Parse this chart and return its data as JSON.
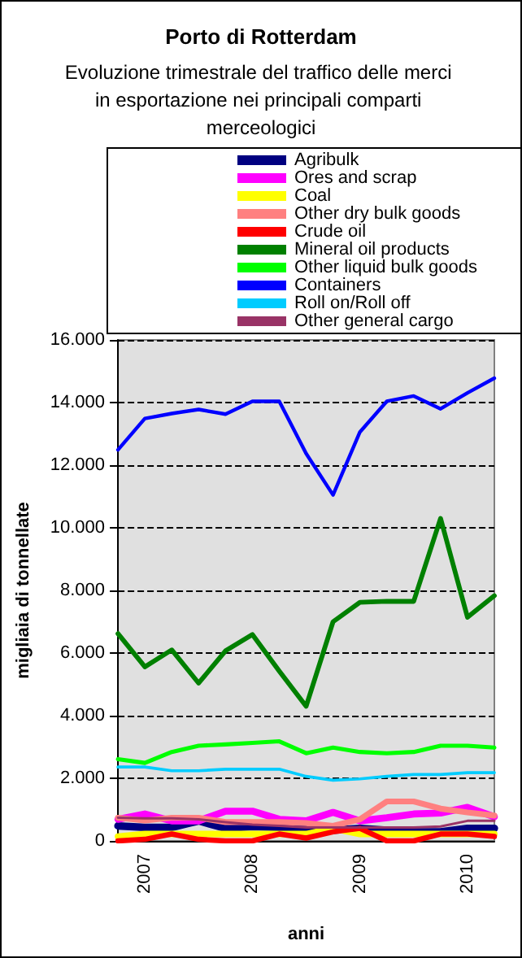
{
  "chart_data": {
    "type": "line",
    "title": "Porto di Rotterdam",
    "subtitle": "Evoluzione trimestrale del traffico delle merci in esportazione nei principali comparti merceologici",
    "xlabel": "anni",
    "ylabel": "migliaia di tonnellate",
    "categories": [
      null,
      "2007",
      null,
      null,
      null,
      "2008",
      null,
      null,
      null,
      "2009",
      null,
      null,
      null,
      "2010",
      null
    ],
    "ylim": [
      0,
      16000
    ],
    "yticks": [
      {
        "value": 0,
        "label": "0"
      },
      {
        "value": 2000,
        "label": "2.000"
      },
      {
        "value": 4000,
        "label": "4.000"
      },
      {
        "value": 6000,
        "label": "6.000"
      },
      {
        "value": 8000,
        "label": "8.000"
      },
      {
        "value": 10000,
        "label": "10.000"
      },
      {
        "value": 12000,
        "label": "12.000"
      },
      {
        "value": 14000,
        "label": "14.000"
      },
      {
        "value": 16000,
        "label": "16.000"
      }
    ],
    "grid": "y",
    "legend": "top",
    "marker": "none",
    "line_style": "solid",
    "series": [
      {
        "name": "Agribulk",
        "color": "#000080",
        "values": [
          480,
          430,
          430,
          640,
          400,
          460,
          430,
          400,
          340,
          400,
          340,
          290,
          290,
          400,
          400
        ]
      },
      {
        "name": "Ores and scrap",
        "color": "#ff00ff",
        "values": [
          690,
          860,
          640,
          640,
          950,
          950,
          690,
          640,
          910,
          640,
          740,
          860,
          890,
          1070,
          770
        ]
      },
      {
        "name": "Coal",
        "color": "#ffff00",
        "values": [
          140,
          220,
          220,
          220,
          220,
          220,
          220,
          220,
          400,
          220,
          220,
          220,
          220,
          220,
          220
        ]
      },
      {
        "name": "Other dry bulk goods",
        "color": "#ff8080",
        "values": [
          740,
          650,
          740,
          740,
          600,
          600,
          600,
          570,
          480,
          690,
          1260,
          1260,
          1030,
          910,
          810
        ]
      },
      {
        "name": "Crude oil",
        "color": "#ff0000",
        "values": [
          0,
          50,
          220,
          50,
          0,
          0,
          220,
          90,
          290,
          400,
          0,
          0,
          220,
          220,
          140
        ]
      },
      {
        "name": "Mineral oil products",
        "color": "#008000",
        "values": [
          6620,
          5560,
          6100,
          5040,
          6070,
          6590,
          5420,
          4300,
          7000,
          7620,
          7650,
          7650,
          10300,
          7140,
          7830
        ]
      },
      {
        "name": "Other liquid bulk goods",
        "color": "#00ff00",
        "values": [
          2610,
          2490,
          2840,
          3040,
          3080,
          3130,
          3180,
          2800,
          2980,
          2840,
          2800,
          2840,
          3040,
          3040,
          2980
        ]
      },
      {
        "name": "Containers",
        "color": "#0000ff",
        "values": [
          12490,
          13490,
          13650,
          13780,
          13630,
          14040,
          14040,
          12370,
          11050,
          13060,
          14040,
          14210,
          13800,
          14310,
          14780
        ]
      },
      {
        "name": "Roll on/Roll off",
        "color": "#00ccff",
        "values": [
          2360,
          2360,
          2240,
          2240,
          2290,
          2290,
          2290,
          2060,
          1940,
          1980,
          2060,
          2120,
          2120,
          2180,
          2180
        ]
      },
      {
        "name": "Other general cargo",
        "color": "#993366",
        "values": [
          740,
          720,
          720,
          690,
          600,
          520,
          480,
          430,
          430,
          430,
          430,
          430,
          460,
          640,
          640
        ]
      }
    ]
  }
}
